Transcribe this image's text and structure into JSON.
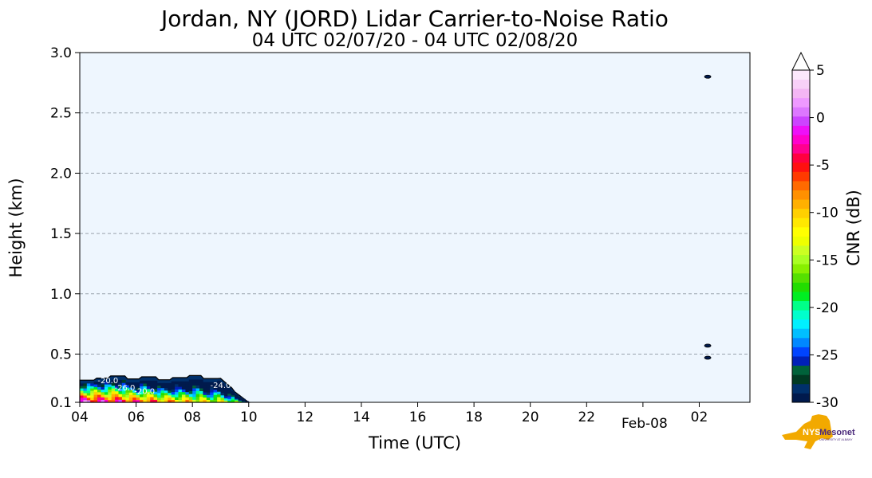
{
  "chart_data": {
    "type": "heatmap",
    "title": "Jordan, NY (JORD) Lidar Carrier-to-Noise Ratio",
    "subtitle": "04 UTC 02/07/20 - 04 UTC 02/08/20",
    "xlabel": "Time (UTC)",
    "ylabel": "Height (km)",
    "xlim_hours": [
      4,
      27.8
    ],
    "ylim": [
      0.1,
      3.0
    ],
    "x_ticks": [
      {
        "hour": 4,
        "label": "04"
      },
      {
        "hour": 6,
        "label": "06"
      },
      {
        "hour": 8,
        "label": "08"
      },
      {
        "hour": 10,
        "label": "10"
      },
      {
        "hour": 12,
        "label": "12"
      },
      {
        "hour": 14,
        "label": "14"
      },
      {
        "hour": 16,
        "label": "16"
      },
      {
        "hour": 18,
        "label": "18"
      },
      {
        "hour": 20,
        "label": "20"
      },
      {
        "hour": 22,
        "label": "22"
      },
      {
        "hour": 24,
        "label": "Feb-08"
      },
      {
        "hour": 26,
        "label": "02"
      }
    ],
    "y_ticks": [
      {
        "value": 0.1,
        "label": "0.1"
      },
      {
        "value": 0.5,
        "label": "0.5"
      },
      {
        "value": 1.0,
        "label": "1.0"
      },
      {
        "value": 1.5,
        "label": "1.5"
      },
      {
        "value": 2.0,
        "label": "2.0"
      },
      {
        "value": 2.5,
        "label": "2.5"
      },
      {
        "value": 3.0,
        "label": "3.0"
      }
    ],
    "gridlines_y": [
      0.5,
      1.0,
      1.5,
      2.0,
      2.5
    ],
    "background_color": "#eef6fe",
    "grid_color": "#9aa3ad",
    "colorbar": {
      "label": "CNR (dB)",
      "min": -30,
      "max": 5,
      "extend": "max",
      "ticks": [
        {
          "value": 5,
          "label": "5"
        },
        {
          "value": 0,
          "label": "0"
        },
        {
          "value": -5,
          "label": "-5"
        },
        {
          "value": -10,
          "label": "-10"
        },
        {
          "value": -15,
          "label": "-15"
        },
        {
          "value": -20,
          "label": "-20"
        },
        {
          "value": -25,
          "label": "-25"
        },
        {
          "value": -30,
          "label": "-30"
        }
      ],
      "colors": [
        "#001a4d",
        "#00306b",
        "#003a22",
        "#00623a",
        "#0020b8",
        "#0044ff",
        "#0088ff",
        "#00bfff",
        "#00f0ff",
        "#00ffcc",
        "#00ff88",
        "#00ee22",
        "#22dd00",
        "#55e000",
        "#88f000",
        "#aaff22",
        "#ccff22",
        "#eeff00",
        "#ffff00",
        "#ffe800",
        "#ffd000",
        "#ffb000",
        "#ff9000",
        "#ff6a00",
        "#ff3a00",
        "#ff1010",
        "#ff0040",
        "#ff0090",
        "#ff00cc",
        "#ee10f8",
        "#cc44ff",
        "#dd77ff",
        "#ee99ff",
        "#f4b6f4",
        "#f8d0f8",
        "#fce8fc"
      ]
    },
    "features": [
      {
        "name": "boundary-layer-echo",
        "start_hour": 4.0,
        "end_hour": 10.0,
        "top_km": 0.35,
        "cnr_range": [
          -30,
          5
        ]
      },
      {
        "name": "cloud-echo-high",
        "hour": 26.3,
        "height_km": 2.8,
        "cnr": -30
      },
      {
        "name": "cloud-echo-low-1",
        "hour": 26.3,
        "height_km": 0.57,
        "cnr": -30
      },
      {
        "name": "cloud-echo-low-2",
        "hour": 26.3,
        "height_km": 0.47,
        "cnr": -30
      }
    ],
    "contour_labels": [
      "-20.0",
      "-26.0",
      "-20.0",
      "-24.0"
    ]
  },
  "logo": {
    "text_main": "Mesonet",
    "text_prefix": "NYS",
    "text_sub": "UNIVERSITY AT ALBANY"
  }
}
